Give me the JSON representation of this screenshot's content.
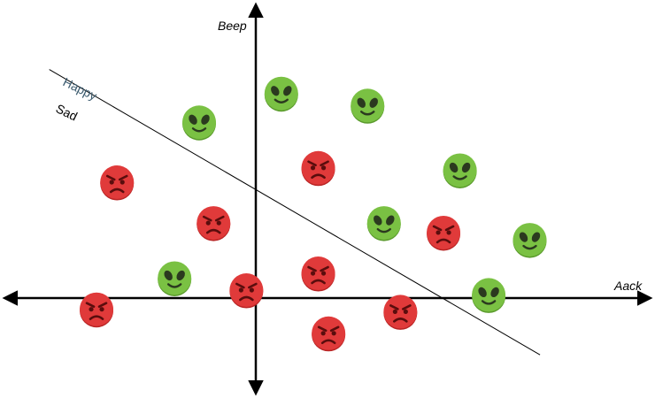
{
  "axes": {
    "x_label": "Aack",
    "y_label": "Beep"
  },
  "boundary": {
    "happy_label": "Happy",
    "sad_label": "Sad"
  },
  "colors": {
    "happy_face": "#7ac143",
    "happy_face_dark": "#5a9a2c",
    "sad_face": "#e03a3a",
    "sad_face_dark": "#b82424",
    "feature_dark": "#2b3a1f",
    "sad_feature": "#5a0d0d",
    "happy_label_color": "#3b5a6e",
    "line_color": "#000000"
  },
  "points": [
    {
      "kind": "alien-happy",
      "x": 1.1,
      "y": 8.3
    },
    {
      "kind": "alien-happy",
      "x": 5.3,
      "y": 7.8
    },
    {
      "kind": "alien-happy",
      "x": -2.9,
      "y": 7.1
    },
    {
      "kind": "alien-happy",
      "x": 9.8,
      "y": 5.1
    },
    {
      "kind": "alien-happy",
      "x": 6.1,
      "y": 2.9
    },
    {
      "kind": "alien-happy",
      "x": 13.2,
      "y": 2.2
    },
    {
      "kind": "alien-happy",
      "x": -4.1,
      "y": 0.6
    },
    {
      "kind": "alien-happy",
      "x": 11.2,
      "y": -0.1
    },
    {
      "kind": "angry-sad",
      "x": 2.9,
      "y": 5.2
    },
    {
      "kind": "angry-sad",
      "x": -6.9,
      "y": 4.6
    },
    {
      "kind": "angry-sad",
      "x": -2.2,
      "y": 2.9
    },
    {
      "kind": "angry-sad",
      "x": 9.0,
      "y": 2.5
    },
    {
      "kind": "angry-sad",
      "x": 2.9,
      "y": 0.8
    },
    {
      "kind": "angry-sad",
      "x": -0.6,
      "y": 0.1
    },
    {
      "kind": "angry-sad",
      "x": -7.9,
      "y": -0.7
    },
    {
      "kind": "angry-sad",
      "x": 6.9,
      "y": -0.8
    },
    {
      "kind": "angry-sad",
      "x": 3.4,
      "y": -1.7
    }
  ],
  "boundary_line": {
    "from": {
      "x": -10.2,
      "y": 9.3
    },
    "to": {
      "x": 13.7,
      "y": -2.6
    }
  },
  "ranges": {
    "x": [
      -12.6,
      19.3
    ],
    "y": [
      -4.4,
      12.2
    ]
  }
}
